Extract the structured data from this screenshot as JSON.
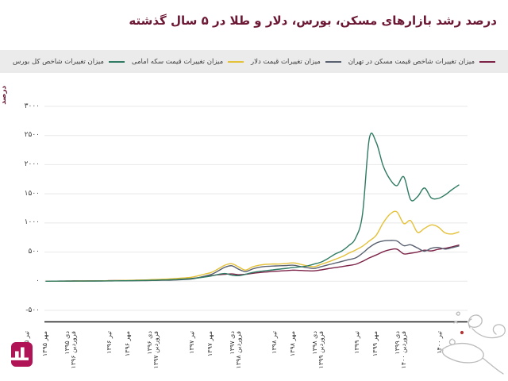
{
  "chart_data": {
    "type": "line",
    "title": "درصد رشد بازارهای مسکن، بورس، دلار و طلا در ۵ سال گذشته",
    "xlabel": "",
    "ylabel": "درصد",
    "ylim": [
      -500,
      3000
    ],
    "grid": true,
    "legend_position": "top",
    "x_label_rotation": 90,
    "x_unit": "month",
    "x_ticks_every": 3,
    "y_ticks": [
      {
        "value": 3000,
        "label": "۳۰۰۰"
      },
      {
        "value": 2500,
        "label": "۲۵۰۰"
      },
      {
        "value": 2000,
        "label": "۲۰۰۰"
      },
      {
        "value": 1500,
        "label": "۱۵۰۰"
      },
      {
        "value": 1000,
        "label": "۱۰۰۰"
      },
      {
        "value": 500,
        "label": "۵۰۰"
      },
      {
        "value": 0,
        "label": "۰"
      },
      {
        "value": -500,
        "label": "-۵۰۰"
      }
    ],
    "x_tick_labels": [
      "تیر ۱۳۹۵",
      "مهر ۱۳۹۵",
      "دی ۱۳۹۵",
      "فروردین ۱۳۹۶",
      "تیر ۱۳۹۶",
      "مهر ۱۳۹۶",
      "دی ۱۳۹۶",
      "فروردین ۱۳۹۷",
      "تیر ۱۳۹۷",
      "مهر ۱۳۹۷",
      "دی ۱۳۹۷",
      "فروردین ۱۳۹۸",
      "تیر ۱۳۹۸",
      "مهر ۱۳۹۸",
      "دی ۱۳۹۸",
      "فروردین ۱۳۹۹",
      "تیر ۱۳۹۹",
      "مهر ۱۳۹۹",
      "دی ۱۳۹۹",
      "فروردین ۱۴۰۰",
      "تیر ۱۴۰۰"
    ],
    "series": [
      {
        "name": "میزان تغییرات شاخص قیمت مسکن در تهران",
        "color": "#7c2247",
        "values": [
          0,
          1,
          2,
          3,
          4,
          5,
          6,
          7,
          8,
          10,
          11,
          12,
          14,
          16,
          18,
          20,
          22,
          25,
          28,
          32,
          38,
          45,
          60,
          80,
          95,
          110,
          120,
          125,
          112,
          118,
          135,
          148,
          158,
          168,
          175,
          182,
          190,
          185,
          180,
          178,
          195,
          215,
          233,
          250,
          270,
          290,
          340,
          400,
          450,
          505,
          540,
          550,
          470,
          480,
          500,
          532,
          520,
          548,
          565,
          590,
          620
        ]
      },
      {
        "name": "میزان تغییرات قیمت دلار",
        "color": "#596070",
        "values": [
          0,
          0,
          1,
          1,
          2,
          2,
          3,
          3,
          4,
          5,
          6,
          7,
          8,
          9,
          10,
          12,
          14,
          16,
          18,
          22,
          28,
          35,
          55,
          85,
          115,
          175,
          240,
          265,
          205,
          165,
          210,
          240,
          255,
          260,
          265,
          270,
          274,
          252,
          232,
          220,
          250,
          280,
          310,
          340,
          370,
          400,
          480,
          580,
          655,
          690,
          700,
          690,
          610,
          625,
          570,
          515,
          565,
          580,
          552,
          575,
          605
        ]
      },
      {
        "name": "میزان تغییرات قیمت سکه امامی",
        "color": "#e4c139",
        "values": [
          0,
          1,
          1,
          2,
          3,
          4,
          5,
          6,
          7,
          9,
          11,
          13,
          15,
          18,
          21,
          25,
          30,
          35,
          40,
          48,
          56,
          65,
          90,
          120,
          150,
          210,
          275,
          300,
          245,
          190,
          245,
          275,
          290,
          295,
          295,
          305,
          315,
          290,
          262,
          250,
          290,
          330,
          375,
          420,
          480,
          535,
          600,
          690,
          790,
          1000,
          1150,
          1190,
          990,
          1040,
          840,
          905,
          965,
          930,
          830,
          810,
          845
        ]
      },
      {
        "name": "میزان تغییرات شاخص کل بورس",
        "color": "#2f7a63",
        "values": [
          0,
          1,
          1,
          2,
          2,
          3,
          3,
          4,
          5,
          6,
          7,
          8,
          9,
          11,
          13,
          15,
          18,
          21,
          25,
          30,
          36,
          43,
          55,
          70,
          90,
          115,
          132,
          105,
          95,
          118,
          150,
          168,
          182,
          195,
          208,
          222,
          237,
          246,
          262,
          295,
          330,
          390,
          465,
          520,
          610,
          740,
          1150,
          2450,
          2380,
          1980,
          1750,
          1640,
          1790,
          1400,
          1450,
          1600,
          1430,
          1420,
          1480,
          1570,
          1650
        ]
      }
    ]
  },
  "legend_background": "#ebebeb",
  "title_color": "#6b1733",
  "logo": {
    "glyph": "bar-chart",
    "color": "#b01457"
  },
  "watermark": {
    "glyph": "calligraphic-signature",
    "color": "#bbbbbb",
    "dot_color": "#b23535"
  }
}
